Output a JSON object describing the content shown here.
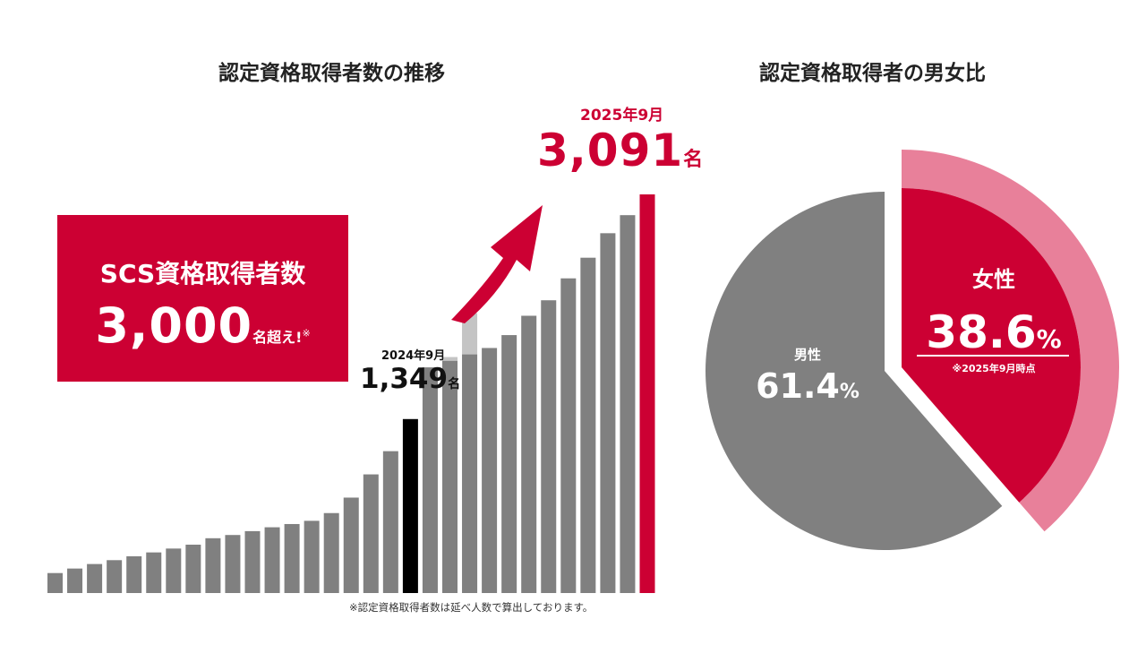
{
  "left_panel": {
    "title": "認定資格取得者数の推移",
    "banner": {
      "label": "SCS資格取得者数",
      "value": "3,000",
      "unit": "名超え!",
      "mark": "※"
    },
    "callout_2024": {
      "date": "2024年9月",
      "value": "1,349",
      "unit": "名"
    },
    "callout_2025": {
      "date": "2025年9月",
      "value": "3,091",
      "unit": "名"
    },
    "footnote": "※認定資格取得者数は延べ人数で算出しております。"
  },
  "right_panel": {
    "title": "認定資格取得者の男女比",
    "female": {
      "label": "女性",
      "value": "38.6",
      "unit": "%",
      "note": "※2025年9月時点"
    },
    "male": {
      "label": "男性",
      "value": "61.4",
      "unit": "%"
    }
  },
  "colors": {
    "accent_red": "#cc0033",
    "light_pink": "#e8809a",
    "bar_gray": "#808080",
    "highlight_black": "#000000",
    "ghost_gray": "#c4c4c4"
  },
  "chart_data": [
    {
      "type": "bar",
      "title": "認定資格取得者数の推移",
      "y_range": [
        0,
        3091
      ],
      "values": [
        155,
        190,
        225,
        255,
        285,
        315,
        345,
        375,
        425,
        450,
        480,
        510,
        535,
        560,
        620,
        740,
        920,
        1100,
        1349,
        1750,
        1800,
        1850,
        1900,
        2000,
        2150,
        2270,
        2440,
        2600,
        2790,
        2930,
        3091
      ],
      "highlight": {
        "index": 18,
        "label": "2024年9月",
        "value": 1349,
        "color": "#000000"
      },
      "final": {
        "index": 30,
        "label": "2025年9月",
        "value": 3091,
        "color": "#cc0033"
      },
      "ghost_values": [
        null,
        null,
        null,
        null,
        null,
        null,
        null,
        null,
        null,
        null,
        null,
        null,
        null,
        null,
        null,
        null,
        null,
        null,
        null,
        1470,
        1830,
        2170,
        null,
        null,
        null,
        null,
        null,
        null,
        null,
        null,
        null
      ]
    },
    {
      "type": "pie",
      "title": "認定資格取得者の男女比",
      "slices": [
        {
          "name": "女性",
          "value": 38.6,
          "color": "#cc0033"
        },
        {
          "name": "男性",
          "value": 61.4,
          "color": "#808080"
        }
      ]
    }
  ]
}
